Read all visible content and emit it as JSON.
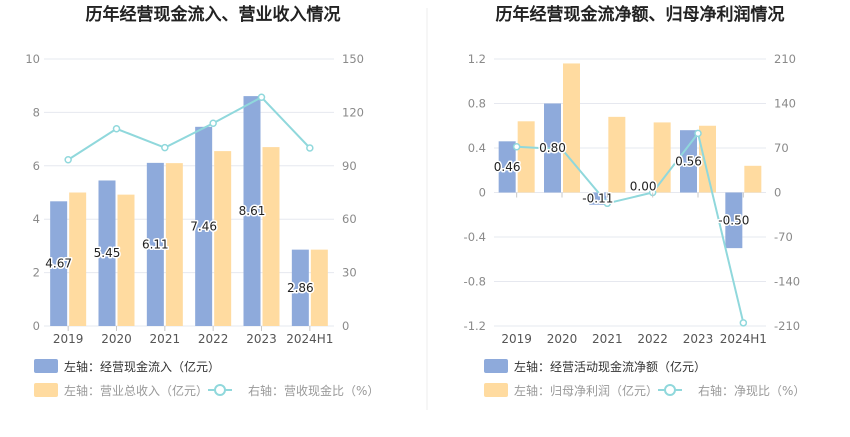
{
  "colors": {
    "bar1": "#8eaadb",
    "bar2": "#ffdba0",
    "line": "#90d8dc",
    "grid": "#e6e8ef",
    "divider": "#eeeeee",
    "legend_bold": "#333333",
    "legend_muted": "#999999"
  },
  "chart_data": [
    {
      "type": "bar",
      "title": "历年经营现金流入、营业收入情况",
      "categories": [
        "2019",
        "2020",
        "2021",
        "2022",
        "2023",
        "2024H1"
      ],
      "left_axis": {
        "ylim": [
          0,
          10
        ],
        "ticks": [
          "0",
          "2",
          "4",
          "6",
          "8",
          "10"
        ]
      },
      "right_axis": {
        "ylim": [
          0,
          150
        ],
        "ticks": [
          "0",
          "30",
          "60",
          "90",
          "120",
          "150"
        ]
      },
      "series": [
        {
          "name": "左轴：经营现金流入（亿元）",
          "axis": "left",
          "kind": "bar",
          "values": [
            4.67,
            5.45,
            6.11,
            7.46,
            8.61,
            2.86
          ],
          "labels": [
            "4.67",
            "5.45",
            "6.11",
            "7.46",
            "8.61",
            "2.86"
          ]
        },
        {
          "name": "左轴：营业总收入（亿元）",
          "axis": "left",
          "kind": "bar",
          "values": [
            5.0,
            4.92,
            6.1,
            6.55,
            6.7,
            2.86
          ]
        },
        {
          "name": "右轴：营收现金比（%）",
          "axis": "right",
          "kind": "line",
          "values": [
            93.4,
            110.8,
            100.2,
            113.9,
            128.5,
            100.0
          ]
        }
      ]
    },
    {
      "type": "bar",
      "title": "历年经营现金流净额、归母净利润情况",
      "categories": [
        "2019",
        "2020",
        "2021",
        "2022",
        "2023",
        "2024H1"
      ],
      "left_axis": {
        "ylim": [
          -1.2,
          1.2
        ],
        "ticks": [
          "-1.2",
          "-0.8",
          "-0.4",
          "0",
          "0.4",
          "0.8",
          "1.2"
        ]
      },
      "right_axis": {
        "ylim": [
          -210,
          210
        ],
        "ticks": [
          "-210",
          "-140",
          "-70",
          "0",
          "70",
          "140",
          "210"
        ]
      },
      "series": [
        {
          "name": "左轴：经营活动现金流净额（亿元）",
          "axis": "left",
          "kind": "bar",
          "values": [
            0.46,
            0.8,
            -0.11,
            0.0,
            0.56,
            -0.5
          ],
          "labels": [
            "0.46",
            "0.80",
            "-0.11",
            "0.00",
            "0.56",
            "-0.50"
          ]
        },
        {
          "name": "左轴：归母净利润（亿元）",
          "axis": "left",
          "kind": "bar",
          "values": [
            0.64,
            1.16,
            0.68,
            0.63,
            0.6,
            0.24
          ]
        },
        {
          "name": "右轴：净现比（%）",
          "axis": "right",
          "kind": "line",
          "values": [
            72,
            68,
            -17,
            0,
            93,
            -205
          ]
        }
      ]
    }
  ]
}
